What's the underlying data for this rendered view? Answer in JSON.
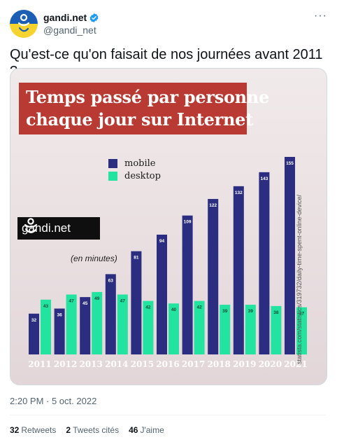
{
  "author": {
    "name": "gandi.net",
    "handle": "@gandi_net",
    "verified_icon": "verified-badge-icon",
    "avatar_colors": [
      "#1a5fb4",
      "#f6d32d"
    ]
  },
  "more_icon": "···",
  "tweet": {
    "text": "Qu'est-ce qu'on faisait de nos journées avant 2011 ?"
  },
  "image": {
    "title_line1": "Temps passé par personne",
    "title_line2": "chaque jour sur Internet",
    "logo_text": "gandi.net",
    "unit_note": "(en minutes)",
    "source": "statista.com/statistics/319732/daily-time-spent-online-device/"
  },
  "chart_data": {
    "type": "bar",
    "title": "Temps passé par personne chaque jour sur Internet",
    "categories": [
      "2011",
      "2012",
      "2013",
      "2014",
      "2015",
      "2016",
      "2017",
      "2018",
      "2019",
      "2020",
      "2021"
    ],
    "series": [
      {
        "name": "mobile",
        "color": "#2b2d80",
        "values": [
          32,
          36,
          45,
          63,
          81,
          94,
          109,
          122,
          132,
          143,
          155
        ]
      },
      {
        "name": "desktop",
        "color": "#22e3a0",
        "values": [
          43,
          47,
          49,
          47,
          42,
          40,
          42,
          39,
          39,
          38,
          37
        ]
      }
    ],
    "ylabel": "(en minutes)",
    "ylim": [
      0,
      155
    ],
    "legend_position": "top-left",
    "grid": false
  },
  "timestamp": "2:20 PM · 5 oct. 2022",
  "stats": {
    "retweets": {
      "count": "32",
      "label": "Retweets"
    },
    "quotes": {
      "count": "2",
      "label": "Tweets cités"
    },
    "likes": {
      "count": "46",
      "label": "J'aime"
    }
  }
}
